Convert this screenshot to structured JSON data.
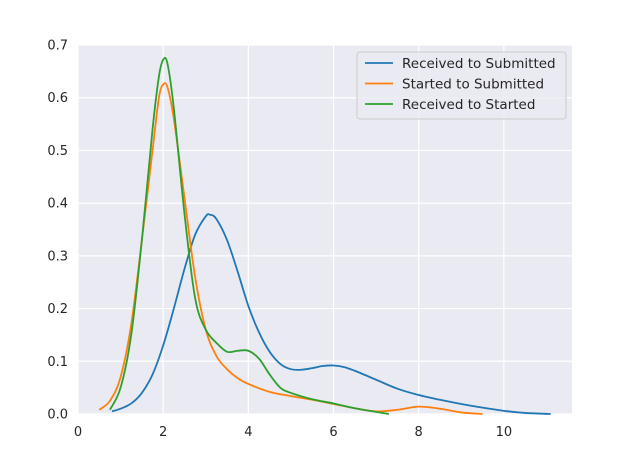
{
  "chart_data": {
    "type": "line",
    "title": "",
    "xlabel": "",
    "ylabel": "",
    "xlim": [
      0,
      11.6
    ],
    "ylim": [
      0,
      0.7
    ],
    "xticks": [
      0,
      2,
      4,
      6,
      8,
      10
    ],
    "yticks": [
      0.0,
      0.1,
      0.2,
      0.3,
      0.4,
      0.5,
      0.6,
      0.7
    ],
    "xtick_labels": [
      "0",
      "2",
      "4",
      "6",
      "8",
      "10"
    ],
    "ytick_labels": [
      "0.0",
      "0.1",
      "0.2",
      "0.3",
      "0.4",
      "0.5",
      "0.6",
      "0.7"
    ],
    "grid": true,
    "legend_position": "top-right",
    "background_color": "#eaeaf2",
    "series": [
      {
        "name": "Received to Submitted",
        "color": "#1f77b4",
        "points": [
          [
            0.8,
            0.005
          ],
          [
            1.0,
            0.01
          ],
          [
            1.25,
            0.02
          ],
          [
            1.5,
            0.04
          ],
          [
            1.75,
            0.075
          ],
          [
            2.0,
            0.13
          ],
          [
            2.25,
            0.2
          ],
          [
            2.5,
            0.275
          ],
          [
            2.75,
            0.34
          ],
          [
            3.0,
            0.375
          ],
          [
            3.1,
            0.378
          ],
          [
            3.25,
            0.37
          ],
          [
            3.5,
            0.33
          ],
          [
            3.75,
            0.27
          ],
          [
            4.0,
            0.205
          ],
          [
            4.25,
            0.155
          ],
          [
            4.5,
            0.118
          ],
          [
            4.75,
            0.095
          ],
          [
            5.0,
            0.085
          ],
          [
            5.25,
            0.084
          ],
          [
            5.5,
            0.087
          ],
          [
            5.75,
            0.091
          ],
          [
            6.0,
            0.092
          ],
          [
            6.25,
            0.089
          ],
          [
            6.5,
            0.082
          ],
          [
            7.0,
            0.065
          ],
          [
            7.5,
            0.048
          ],
          [
            8.0,
            0.036
          ],
          [
            8.5,
            0.027
          ],
          [
            9.0,
            0.019
          ],
          [
            9.5,
            0.012
          ],
          [
            10.0,
            0.006
          ],
          [
            10.5,
            0.002
          ],
          [
            11.1,
            0.0
          ]
        ]
      },
      {
        "name": "Started to Submitted",
        "color": "#ff7f0e",
        "points": [
          [
            0.5,
            0.008
          ],
          [
            0.75,
            0.025
          ],
          [
            1.0,
            0.07
          ],
          [
            1.25,
            0.17
          ],
          [
            1.5,
            0.33
          ],
          [
            1.75,
            0.5
          ],
          [
            1.9,
            0.6
          ],
          [
            2.0,
            0.625
          ],
          [
            2.1,
            0.62
          ],
          [
            2.25,
            0.56
          ],
          [
            2.5,
            0.41
          ],
          [
            2.75,
            0.26
          ],
          [
            3.0,
            0.16
          ],
          [
            3.25,
            0.11
          ],
          [
            3.5,
            0.085
          ],
          [
            3.75,
            0.068
          ],
          [
            4.0,
            0.057
          ],
          [
            4.5,
            0.042
          ],
          [
            5.0,
            0.034
          ],
          [
            5.5,
            0.027
          ],
          [
            6.0,
            0.019
          ],
          [
            6.5,
            0.011
          ],
          [
            7.0,
            0.005
          ],
          [
            7.5,
            0.008
          ],
          [
            8.0,
            0.014
          ],
          [
            8.5,
            0.01
          ],
          [
            9.0,
            0.003
          ],
          [
            9.5,
            0.0
          ]
        ]
      },
      {
        "name": "Received to Started",
        "color": "#2ca02c",
        "points": [
          [
            0.75,
            0.008
          ],
          [
            1.0,
            0.05
          ],
          [
            1.25,
            0.15
          ],
          [
            1.5,
            0.33
          ],
          [
            1.75,
            0.54
          ],
          [
            1.9,
            0.64
          ],
          [
            2.0,
            0.672
          ],
          [
            2.1,
            0.665
          ],
          [
            2.25,
            0.58
          ],
          [
            2.5,
            0.38
          ],
          [
            2.75,
            0.22
          ],
          [
            3.0,
            0.16
          ],
          [
            3.25,
            0.135
          ],
          [
            3.5,
            0.118
          ],
          [
            3.75,
            0.12
          ],
          [
            4.0,
            0.12
          ],
          [
            4.25,
            0.105
          ],
          [
            4.5,
            0.075
          ],
          [
            4.75,
            0.05
          ],
          [
            5.0,
            0.04
          ],
          [
            5.5,
            0.028
          ],
          [
            6.0,
            0.02
          ],
          [
            6.5,
            0.011
          ],
          [
            7.0,
            0.004
          ],
          [
            7.3,
            0.0
          ]
        ]
      }
    ]
  }
}
